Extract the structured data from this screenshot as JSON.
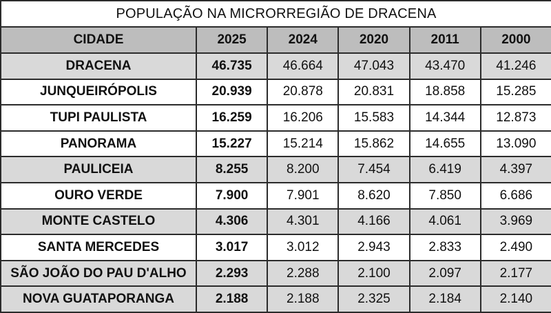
{
  "title": "POPULAÇÃO NA MICRORREGIÃO DE DRACENA",
  "headers": [
    "CIDADE",
    "2025",
    "2024",
    "2020",
    "2011",
    "2000"
  ],
  "rows": [
    {
      "city": "DRACENA",
      "values": [
        "46.735",
        "46.664",
        "47.043",
        "43.470",
        "41.246"
      ]
    },
    {
      "city": "JUNQUEIRÓPOLIS",
      "values": [
        "20.939",
        "20.878",
        "20.831",
        "18.858",
        "15.285"
      ]
    },
    {
      "city": "TUPI PAULISTA",
      "values": [
        "16.259",
        "16.206",
        "15.583",
        "14.344",
        "12.873"
      ]
    },
    {
      "city": "PANORAMA",
      "values": [
        "15.227",
        "15.214",
        "15.862",
        "14.655",
        "13.090"
      ]
    },
    {
      "city": "PAULICEIA",
      "values": [
        "8.255",
        "8.200",
        "7.454",
        "6.419",
        "4.397"
      ]
    },
    {
      "city": "OURO VERDE",
      "values": [
        "7.900",
        "7.901",
        "8.620",
        "7.850",
        "6.686"
      ]
    },
    {
      "city": "MONTE CASTELO",
      "values": [
        "4.306",
        "4.301",
        "4.166",
        "4.061",
        "3.969"
      ]
    },
    {
      "city": "SANTA MERCEDES",
      "values": [
        "3.017",
        "3.012",
        "2.943",
        "2.833",
        "2.490"
      ]
    },
    {
      "city": "SÃO JOÃO DO PAU D'ALHO",
      "values": [
        "2.293",
        "2.288",
        "2.100",
        "2.097",
        "2.177"
      ]
    },
    {
      "city": "NOVA GUATAPORANGA",
      "values": [
        "2.188",
        "2.188",
        "2.325",
        "2.184",
        "2.140"
      ]
    }
  ],
  "colors": {
    "header_bg": "#bdbdbd",
    "shaded_row_bg": "#d9d9d9",
    "border": "#2b2b2b"
  }
}
